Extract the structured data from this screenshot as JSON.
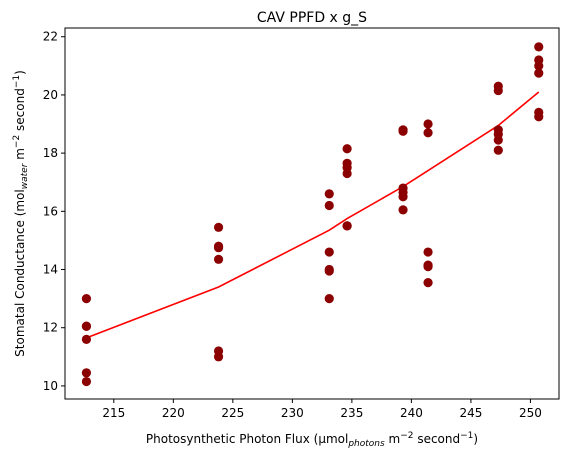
{
  "chart_data": {
    "type": "scatter",
    "title": "CAV PPFD x g_S",
    "xlabel": {
      "pre": "Photosynthetic Photon Flux (μmol",
      "sub": "photons",
      "mid": " m",
      "sup1": "−2",
      "mid2": " second",
      "sup2": "−1",
      "post": ")"
    },
    "ylabel": {
      "pre": "Stomatal Conductance (mol",
      "sub": "water",
      "mid": " m",
      "sup1": "−2",
      "mid2": " second",
      "sup2": "−1",
      "post": ")"
    },
    "xlim": [
      210.9,
      252.4
    ],
    "ylim": [
      9.55,
      22.3
    ],
    "xticks": [
      215,
      220,
      225,
      230,
      235,
      240,
      245,
      250
    ],
    "yticks": [
      10,
      12,
      14,
      16,
      18,
      20,
      22
    ],
    "grid": false,
    "scatter": {
      "color": "#8b0000",
      "points": [
        [
          212.7,
          13.0
        ],
        [
          212.7,
          12.05
        ],
        [
          212.7,
          12.05
        ],
        [
          212.7,
          11.6
        ],
        [
          212.7,
          10.45
        ],
        [
          212.7,
          10.15
        ],
        [
          223.8,
          15.45
        ],
        [
          223.8,
          14.8
        ],
        [
          223.8,
          14.75
        ],
        [
          223.8,
          14.35
        ],
        [
          223.8,
          11.2
        ],
        [
          223.8,
          11.0
        ],
        [
          233.1,
          16.6
        ],
        [
          233.1,
          16.2
        ],
        [
          233.1,
          14.6
        ],
        [
          233.1,
          14.0
        ],
        [
          233.1,
          13.95
        ],
        [
          233.1,
          13.0
        ],
        [
          234.6,
          18.15
        ],
        [
          234.6,
          17.65
        ],
        [
          234.6,
          17.5
        ],
        [
          234.6,
          17.3
        ],
        [
          234.6,
          15.5
        ],
        [
          234.6,
          15.5
        ],
        [
          239.3,
          18.8
        ],
        [
          239.3,
          18.75
        ],
        [
          239.3,
          16.8
        ],
        [
          239.3,
          16.65
        ],
        [
          239.3,
          16.5
        ],
        [
          239.3,
          16.05
        ],
        [
          241.4,
          19.0
        ],
        [
          241.4,
          18.7
        ],
        [
          241.4,
          14.6
        ],
        [
          241.4,
          14.15
        ],
        [
          241.4,
          14.1
        ],
        [
          241.4,
          13.55
        ],
        [
          247.3,
          20.3
        ],
        [
          247.3,
          20.15
        ],
        [
          247.3,
          18.8
        ],
        [
          247.3,
          18.65
        ],
        [
          247.3,
          18.45
        ],
        [
          247.3,
          18.1
        ],
        [
          250.7,
          21.65
        ],
        [
          250.7,
          21.2
        ],
        [
          250.7,
          21.0
        ],
        [
          250.7,
          20.75
        ],
        [
          250.7,
          19.4
        ],
        [
          250.7,
          19.25
        ]
      ]
    },
    "fit_line": {
      "color": "#ff0000",
      "x": [
        212.7,
        223.8,
        233.1,
        234.6,
        239.3,
        241.4,
        247.3,
        250.7
      ],
      "y": [
        11.65,
        13.4,
        15.35,
        15.75,
        16.85,
        17.4,
        18.95,
        20.1
      ]
    }
  }
}
